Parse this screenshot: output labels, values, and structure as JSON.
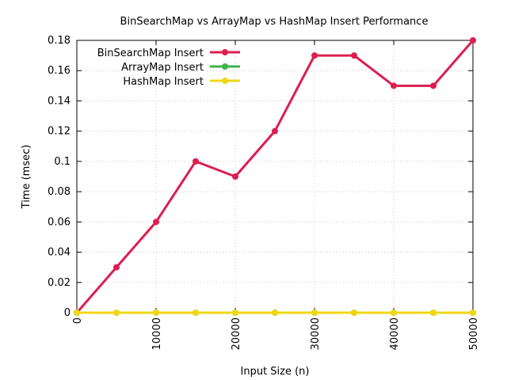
{
  "chart_data": {
    "type": "line",
    "title": "BinSearchMap vs ArrayMap vs HashMap Insert Performance",
    "xlabel": "Input Size (n)",
    "ylabel": "Time (msec)",
    "xlim": [
      0,
      50000
    ],
    "ylim": [
      0,
      0.18
    ],
    "xticks": [
      0,
      10000,
      20000,
      30000,
      40000,
      50000
    ],
    "xtick_labels": [
      "0",
      "10000",
      "20000",
      "30000",
      "40000",
      "50000"
    ],
    "yticks": [
      0,
      0.02,
      0.04,
      0.06,
      0.08,
      0.1,
      0.12,
      0.14,
      0.16,
      0.18
    ],
    "ytick_labels": [
      "0",
      "0.02",
      "0.04",
      "0.06",
      "0.08",
      "0.1",
      "0.12",
      "0.14",
      "0.16",
      "0.18"
    ],
    "grid": true,
    "legend_position": "top-left",
    "x": [
      0,
      5000,
      10000,
      15000,
      20000,
      25000,
      30000,
      35000,
      40000,
      45000,
      50000
    ],
    "series": [
      {
        "name": "BinSearchMap Insert",
        "color": "#dc1e50",
        "marker": "circle",
        "values": [
          0,
          0.03,
          0.06,
          0.1,
          0.09,
          0.12,
          0.17,
          0.17,
          0.15,
          0.15,
          0.18
        ]
      },
      {
        "name": "ArrayMap Insert",
        "color": "#3cb44b",
        "marker": "circle",
        "values": [
          0,
          0,
          0,
          0,
          0,
          0,
          0,
          0,
          0,
          0,
          0
        ]
      },
      {
        "name": "HashMap Insert",
        "color": "#f0d714",
        "marker": "circle",
        "values": [
          0,
          0,
          0,
          0,
          0,
          0,
          0,
          0,
          0,
          0,
          0
        ]
      }
    ]
  }
}
